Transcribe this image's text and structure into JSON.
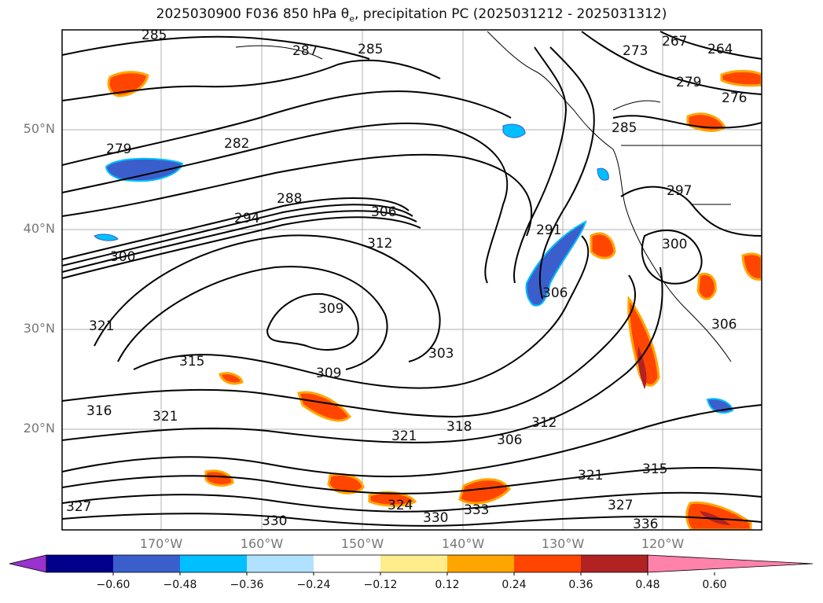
{
  "title": "2025030900 F036 850 hPa θ",
  "title_sub": "e",
  "title_tail": ", precipitation PC (2025031212 - 2025031312)",
  "lat_labels": [
    "50°N",
    "40°N",
    "30°N",
    "20°N"
  ],
  "lon_labels": [
    "170°W",
    "160°W",
    "150°W",
    "140°W",
    "130°W",
    "120°W"
  ],
  "contour_labels": [
    "285",
    "285",
    "287",
    "267",
    "264",
    "273",
    "276",
    "279",
    "285",
    "279",
    "282",
    "288",
    "294",
    "306",
    "312",
    "300",
    "297",
    "291",
    "300",
    "306",
    "309",
    "315",
    "321",
    "303",
    "309",
    "306",
    "316",
    "321",
    "318",
    "312",
    "321",
    "306",
    "315",
    "321",
    "327",
    "324",
    "330",
    "333",
    "336",
    "330",
    "327"
  ],
  "colorbar": {
    "ticks": [
      "−0.60",
      "−0.48",
      "−0.36",
      "−0.24",
      "−0.12",
      "0.12",
      "0.24",
      "0.36",
      "0.48",
      "0.60"
    ],
    "colors": [
      "#9a32cd",
      "#00008b",
      "#3a5fcd",
      "#00bfff",
      "#b0e2ff",
      "#ffffff",
      "#ffec8b",
      "#ffa500",
      "#ff4500",
      "#b22222",
      "#ff82ab"
    ]
  }
}
